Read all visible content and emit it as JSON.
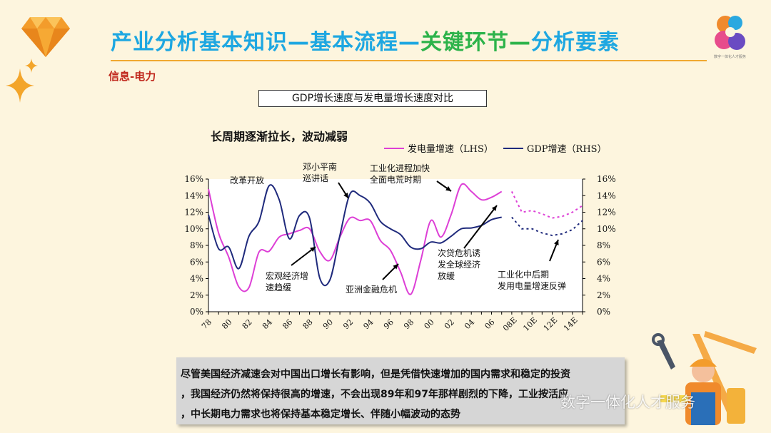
{
  "header": {
    "title_parts": [
      {
        "text": "产业分析基本知识—基本流程—",
        "color": "#1ea7e1"
      },
      {
        "text": "关键环节—",
        "color": "#2db34a"
      },
      {
        "text": "分析要素",
        "color": "#1ea7e1"
      }
    ],
    "subtitle": "信息-电力",
    "logo_caption": "数字一体化人才服务"
  },
  "chart": {
    "title": "GDP增长速度与发电量增长速度对比",
    "headline": "长周期逐渐拉长，波动减弱"
  },
  "chart_data": {
    "type": "line",
    "title": "GDP增长速度与发电量增长速度对比",
    "x_ticks": [
      "78",
      "80",
      "82",
      "84",
      "86",
      "88",
      "90",
      "92",
      "94",
      "96",
      "98",
      "00",
      "02",
      "04",
      "06",
      "08E",
      "10E",
      "12E",
      "14E"
    ],
    "y_left": {
      "ticks": [
        "0%",
        "2%",
        "4%",
        "6%",
        "8%",
        "10%",
        "12%",
        "14%",
        "16%"
      ],
      "min": 0,
      "max": 16
    },
    "y_right": {
      "ticks": [
        "0%",
        "2%",
        "4%",
        "6%",
        "8%",
        "10%",
        "12%",
        "14%",
        "16%"
      ],
      "min": 0,
      "max": 16
    },
    "legend": {
      "position": "top",
      "entries": [
        "发电量增速（LHS）",
        "GDP增速（RHS）"
      ]
    },
    "series": [
      {
        "name": "发电量增速（LHS）",
        "color": "#dd3fd6",
        "axis": "left",
        "x": [
          1978,
          1979,
          1980,
          1981,
          1982,
          1983,
          1984,
          1985,
          1986,
          1987,
          1988,
          1989,
          1990,
          1991,
          1992,
          1993,
          1994,
          1995,
          1996,
          1997,
          1998,
          1999,
          2000,
          2001,
          2002,
          2003,
          2004,
          2005,
          2006,
          2007,
          2008
        ],
        "values": [
          14.8,
          9.5,
          6.6,
          3.0,
          2.9,
          7.2,
          7.3,
          9.0,
          9.4,
          9.8,
          10.0,
          7.3,
          6.2,
          9.0,
          11.3,
          11.0,
          11.0,
          8.6,
          7.4,
          4.8,
          2.1,
          6.2,
          11.0,
          9.0,
          11.7,
          15.3,
          14.5,
          13.5,
          13.8,
          14.5,
          null
        ],
        "projected_x": [
          2008,
          2009,
          2010,
          2011,
          2012,
          2013,
          2014,
          2015
        ],
        "projected_values": [
          14.5,
          12.0,
          12.2,
          11.8,
          11.3,
          11.5,
          12.0,
          12.8
        ]
      },
      {
        "name": "GDP增速（RHS）",
        "color": "#1f2a7c",
        "axis": "right",
        "x": [
          1978,
          1979,
          1980,
          1981,
          1982,
          1983,
          1984,
          1985,
          1986,
          1987,
          1988,
          1989,
          1990,
          1991,
          1992,
          1993,
          1994,
          1995,
          1996,
          1997,
          1998,
          1999,
          2000,
          2001,
          2002,
          2003,
          2004,
          2005,
          2006,
          2007,
          2008
        ],
        "values": [
          11.7,
          7.6,
          7.8,
          5.2,
          9.1,
          10.9,
          15.2,
          13.5,
          8.8,
          11.6,
          11.3,
          4.1,
          3.8,
          9.2,
          14.2,
          14.0,
          13.1,
          10.9,
          10.0,
          9.3,
          7.8,
          7.6,
          8.4,
          8.3,
          9.1,
          10.0,
          10.1,
          10.4,
          11.1,
          11.4,
          null
        ],
        "projected_x": [
          2008,
          2009,
          2010,
          2011,
          2012,
          2013,
          2014,
          2015
        ],
        "projected_values": [
          11.4,
          10.0,
          10.0,
          9.5,
          9.2,
          9.4,
          9.9,
          11.0
        ]
      }
    ],
    "annotations": [
      {
        "text": [
          "改革开放"
        ]
      },
      {
        "text": [
          "邓小平南",
          "巡讲话"
        ]
      },
      {
        "text": [
          "工业化进程加快",
          "全面电荒时期"
        ]
      },
      {
        "text": [
          "宏观经济增",
          "速趋缓"
        ]
      },
      {
        "text": [
          "亚洲金融危机"
        ]
      },
      {
        "text": [
          "次贷危机诱",
          "发全球经济",
          "放缓"
        ]
      },
      {
        "text": [
          "工业化中后期",
          "发用电量增速反弹"
        ]
      }
    ]
  },
  "summary": {
    "lines": [
      "尽管美国经济减速会对中国出口增长有影响，但是凭借快速增加的国内需求和稳定的投资",
      "，我国经济仍然将保持很高的增速，不会出现89年和97年那样剧烈的下降，工业按活应",
      "，中长期电力需求也将保持基本稳定增长、伴随小幅波动的态势"
    ]
  },
  "watermark": "数字一体化人才服务",
  "colors": {
    "background": "#fdf5de",
    "accent_orange": "#f0a830",
    "title_blue": "#1ea7e1",
    "title_green": "#2db34a"
  }
}
